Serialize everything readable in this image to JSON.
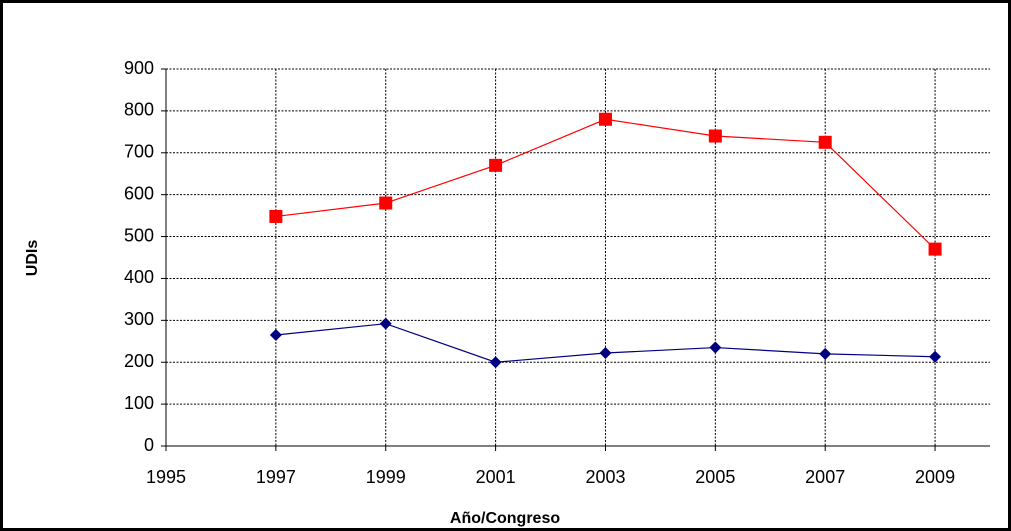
{
  "chart_data": {
    "type": "line",
    "x_label": "Año/Congreso",
    "y_label": "UDIs",
    "x": [
      1997,
      1999,
      2001,
      2003,
      2005,
      2007,
      2009
    ],
    "series": [
      {
        "color": "#ff0000",
        "marker": "square",
        "values": [
          548,
          580,
          670,
          780,
          740,
          725,
          470
        ]
      },
      {
        "color": "#000080",
        "marker": "diamond",
        "values": [
          265,
          292,
          200,
          222,
          235,
          220,
          213
        ]
      }
    ],
    "xlim": [
      1995,
      2010
    ],
    "xticks": [
      1995,
      1997,
      1999,
      2001,
      2003,
      2005,
      2007,
      2009
    ],
    "ylim": [
      0,
      900
    ],
    "yticks": [
      0,
      100,
      200,
      300,
      400,
      500,
      600,
      700,
      800,
      900
    ],
    "grid": true
  }
}
